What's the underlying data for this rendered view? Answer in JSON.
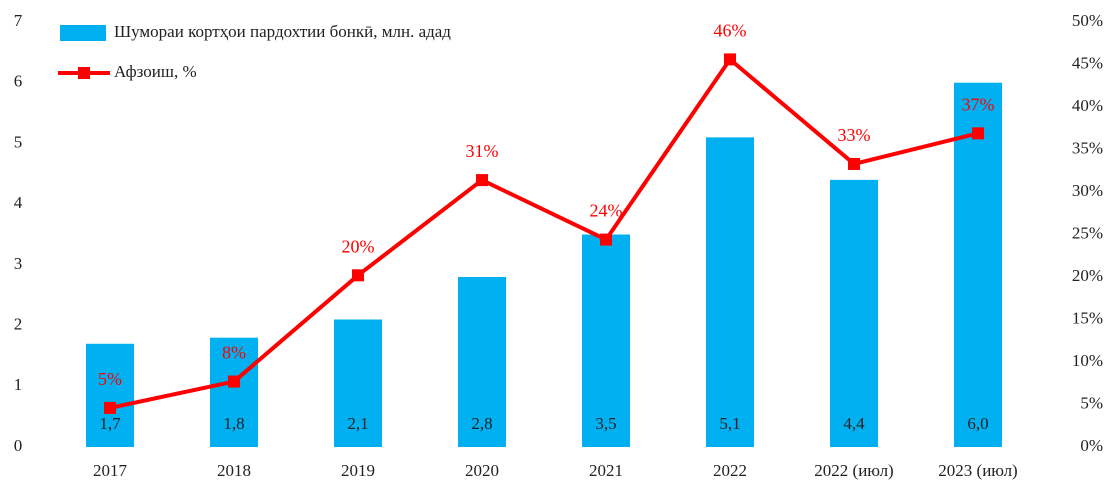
{
  "chart_data": {
    "type": "bar",
    "categories": [
      "2017",
      "2018",
      "2019",
      "2020",
      "2021",
      "2022",
      "2022 (июл)",
      "2023 (июл)"
    ],
    "series": [
      {
        "name": "Шумораи кортҳои пардохтии бонкӣ, млн. адад",
        "type": "bar",
        "color": "#00b0f0",
        "values": [
          1.7,
          1.8,
          2.1,
          2.8,
          3.5,
          5.1,
          4.4,
          6.0
        ],
        "value_labels": [
          "1,7",
          "1,8",
          "2,1",
          "2,8",
          "3,5",
          "5,1",
          "4,4",
          "6,0"
        ]
      },
      {
        "name": "Афзоиш, %",
        "type": "line",
        "axis": "y2",
        "color": "#ff0000",
        "values": [
          4.6,
          7.7,
          20.2,
          31.4,
          24.4,
          45.6,
          33.3,
          36.9
        ],
        "value_labels": [
          "5%",
          "8%",
          "20%",
          "31%",
          "24%",
          "46%",
          "33%",
          "37%"
        ]
      }
    ],
    "ylim": [
      0,
      7
    ],
    "yticks": [
      0,
      1,
      2,
      3,
      4,
      5,
      6,
      7
    ],
    "y2lim": [
      0,
      50
    ],
    "y2ticks": [
      {
        "value": 0,
        "label": "0%"
      },
      {
        "value": 5,
        "label": "5%"
      },
      {
        "value": 10,
        "label": "10%"
      },
      {
        "value": 15,
        "label": "15%"
      },
      {
        "value": 20,
        "label": "20%"
      },
      {
        "value": 25,
        "label": "25%"
      },
      {
        "value": 30,
        "label": "30%"
      },
      {
        "value": 35,
        "label": "35%"
      },
      {
        "value": 40,
        "label": "40%"
      },
      {
        "value": 45,
        "label": "45%"
      },
      {
        "value": 50,
        "label": "50%"
      }
    ],
    "grid": false,
    "legend": "upper left"
  }
}
